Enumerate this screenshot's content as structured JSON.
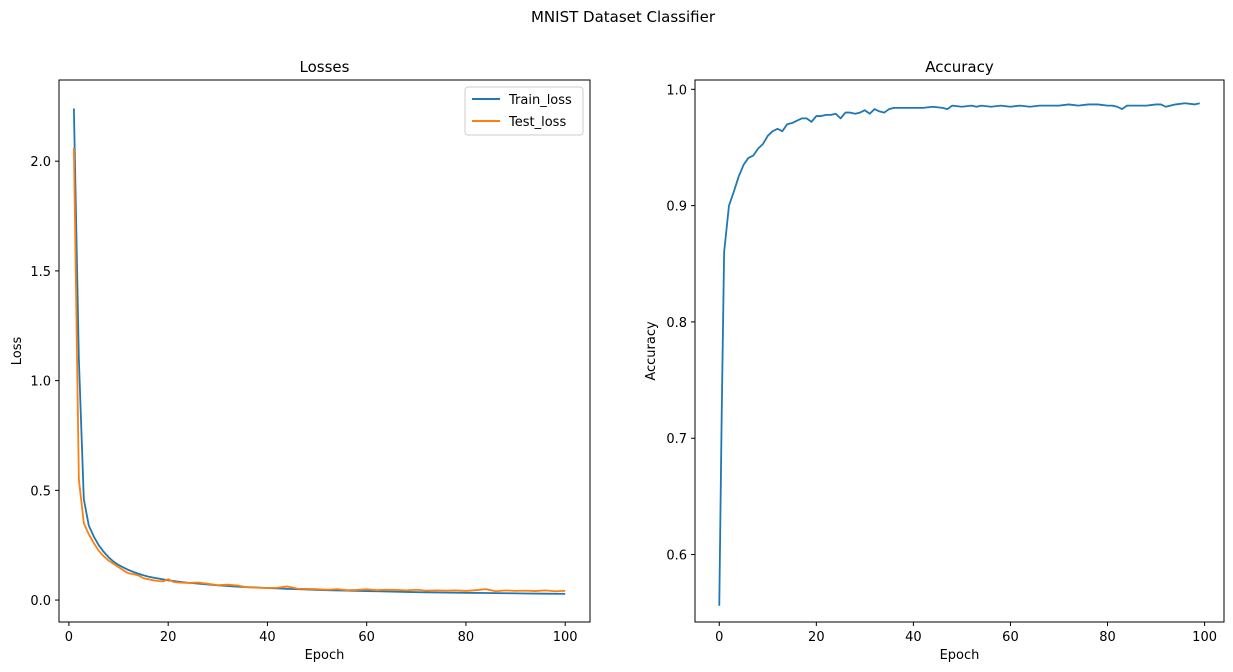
{
  "figure": {
    "suptitle": "MNIST Dataset Classifier"
  },
  "chart_data": [
    {
      "type": "line",
      "title": "Losses",
      "xlabel": "Epoch",
      "ylabel": "Loss",
      "xlim": [
        -2,
        105
      ],
      "ylim": [
        -0.1,
        2.37
      ],
      "xticks": [
        0,
        20,
        40,
        60,
        80,
        100
      ],
      "yticks": [
        0.0,
        0.5,
        1.0,
        1.5,
        2.0
      ],
      "ytick_labels": [
        "0.0",
        "0.5",
        "1.0",
        "1.5",
        "2.0"
      ],
      "grid": false,
      "legend": "top-right",
      "series": [
        {
          "name": "Train_loss",
          "color": "#1f77b4",
          "x": [
            1,
            2,
            3,
            4,
            5,
            6,
            7,
            8,
            9,
            10,
            11,
            12,
            13,
            14,
            15,
            16,
            17,
            18,
            19,
            20,
            22,
            24,
            26,
            28,
            30,
            32,
            34,
            36,
            38,
            40,
            44,
            48,
            52,
            56,
            60,
            64,
            68,
            72,
            76,
            80,
            84,
            88,
            92,
            96,
            100
          ],
          "y": [
            2.24,
            1.1,
            0.46,
            0.34,
            0.29,
            0.25,
            0.22,
            0.195,
            0.175,
            0.16,
            0.148,
            0.137,
            0.128,
            0.12,
            0.113,
            0.107,
            0.102,
            0.098,
            0.094,
            0.09,
            0.084,
            0.079,
            0.075,
            0.071,
            0.067,
            0.064,
            0.061,
            0.059,
            0.057,
            0.055,
            0.051,
            0.048,
            0.045,
            0.043,
            0.041,
            0.039,
            0.037,
            0.035,
            0.034,
            0.033,
            0.032,
            0.031,
            0.03,
            0.029,
            0.028
          ]
        },
        {
          "name": "Test_loss",
          "color": "#ff7f0e",
          "x": [
            1,
            2,
            3,
            4,
            5,
            6,
            7,
            8,
            9,
            10,
            11,
            12,
            13,
            14,
            15,
            16,
            17,
            18,
            19,
            20,
            21,
            22,
            24,
            26,
            28,
            30,
            32,
            34,
            36,
            38,
            40,
            42,
            44,
            46,
            48,
            50,
            52,
            54,
            56,
            58,
            60,
            62,
            64,
            66,
            68,
            70,
            72,
            74,
            76,
            78,
            80,
            82,
            84,
            86,
            88,
            90,
            92,
            94,
            96,
            98,
            100
          ],
          "y": [
            2.06,
            0.55,
            0.35,
            0.3,
            0.26,
            0.225,
            0.2,
            0.18,
            0.165,
            0.15,
            0.135,
            0.122,
            0.118,
            0.112,
            0.1,
            0.095,
            0.09,
            0.087,
            0.085,
            0.095,
            0.083,
            0.08,
            0.078,
            0.08,
            0.074,
            0.068,
            0.07,
            0.066,
            0.058,
            0.056,
            0.055,
            0.056,
            0.062,
            0.052,
            0.051,
            0.05,
            0.047,
            0.05,
            0.045,
            0.046,
            0.049,
            0.045,
            0.047,
            0.046,
            0.044,
            0.047,
            0.043,
            0.044,
            0.043,
            0.044,
            0.042,
            0.045,
            0.05,
            0.04,
            0.044,
            0.042,
            0.043,
            0.041,
            0.044,
            0.04,
            0.042
          ]
        }
      ]
    },
    {
      "type": "line",
      "title": "Accuracy",
      "xlabel": "Epoch",
      "ylabel": "Accuracy",
      "xlim": [
        -5,
        104
      ],
      "ylim": [
        0.542,
        1.008
      ],
      "xticks": [
        0,
        20,
        40,
        60,
        80,
        100
      ],
      "yticks": [
        0.6,
        0.7,
        0.8,
        0.9,
        1.0
      ],
      "ytick_labels": [
        "0.6",
        "0.7",
        "0.8",
        "0.9",
        "1.0"
      ],
      "grid": false,
      "series": [
        {
          "name": "",
          "color": "#1f77b4",
          "x": [
            0,
            0.5,
            1,
            2,
            3,
            4,
            5,
            6,
            7,
            8,
            9,
            10,
            11,
            12,
            13,
            14,
            15,
            16,
            17,
            18,
            19,
            20,
            21,
            22,
            23,
            24,
            25,
            26,
            27,
            28,
            29,
            30,
            31,
            32,
            33,
            34,
            35,
            36,
            38,
            40,
            42,
            44,
            46,
            47,
            48,
            50,
            52,
            53,
            54,
            56,
            58,
            60,
            62,
            64,
            66,
            68,
            70,
            72,
            74,
            76,
            78,
            80,
            81,
            82,
            83,
            84,
            86,
            88,
            90,
            91,
            92,
            94,
            96,
            98,
            99
          ],
          "y": [
            0.556,
            0.72,
            0.86,
            0.9,
            0.912,
            0.925,
            0.935,
            0.941,
            0.943,
            0.949,
            0.953,
            0.96,
            0.964,
            0.966,
            0.964,
            0.97,
            0.971,
            0.973,
            0.975,
            0.975,
            0.972,
            0.977,
            0.977,
            0.978,
            0.978,
            0.979,
            0.975,
            0.98,
            0.98,
            0.979,
            0.98,
            0.982,
            0.979,
            0.983,
            0.981,
            0.98,
            0.983,
            0.984,
            0.984,
            0.984,
            0.984,
            0.985,
            0.984,
            0.983,
            0.986,
            0.985,
            0.986,
            0.985,
            0.986,
            0.985,
            0.986,
            0.985,
            0.986,
            0.985,
            0.986,
            0.986,
            0.986,
            0.987,
            0.986,
            0.987,
            0.987,
            0.986,
            0.986,
            0.985,
            0.983,
            0.986,
            0.986,
            0.986,
            0.987,
            0.987,
            0.985,
            0.987,
            0.988,
            0.987,
            0.988
          ]
        }
      ]
    }
  ]
}
